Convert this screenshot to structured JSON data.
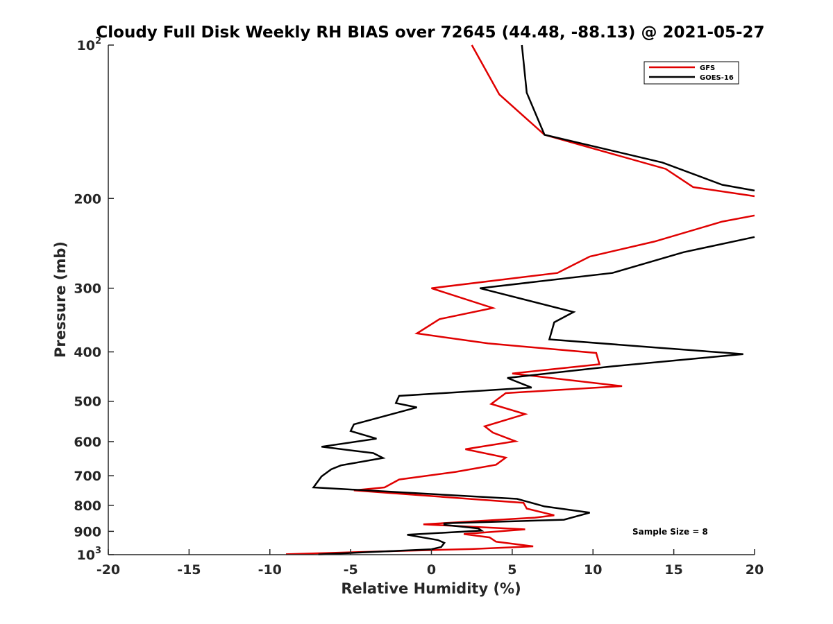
{
  "chart_data": {
    "type": "line",
    "title": "Cloudy Full Disk Weekly RH BIAS over 72645 (44.48, -88.13) @ 2021-05-27",
    "xlabel": "Relative Humidity (%)",
    "ylabel": "Pressure (mb)",
    "xlim": [
      -20,
      20
    ],
    "ylim": [
      100,
      1000
    ],
    "y_scale": "log",
    "y_reversed": true,
    "grid": false,
    "legend_position": "top-right",
    "x_ticks": [
      "-20",
      "-15",
      "-10",
      "-5",
      "0",
      "5",
      "10",
      "15",
      "20"
    ],
    "y_ticks": [
      {
        "value": 100,
        "base": "10",
        "exp": "2"
      },
      {
        "value": 200,
        "label": "200"
      },
      {
        "value": 300,
        "label": "300"
      },
      {
        "value": 400,
        "label": "400"
      },
      {
        "value": 500,
        "label": "500"
      },
      {
        "value": 600,
        "label": "600"
      },
      {
        "value": 700,
        "label": "700"
      },
      {
        "value": 800,
        "label": "800"
      },
      {
        "value": 900,
        "label": "900"
      },
      {
        "value": 1000,
        "base": "10",
        "exp": "3"
      }
    ],
    "annotation": "Sample Size = 8",
    "series": [
      {
        "name": "GFS",
        "color": "#e00000",
        "points": [
          [
            2.5,
            100
          ],
          [
            4.2,
            125
          ],
          [
            7.0,
            150
          ],
          [
            14.5,
            175
          ],
          [
            16.2,
            190
          ],
          [
            20.0,
            198
          ],
          [
            null,
            null
          ],
          [
            20.0,
            216
          ],
          [
            18.0,
            222
          ],
          [
            13.8,
            243
          ],
          [
            9.8,
            260
          ],
          [
            7.8,
            280
          ],
          [
            0.0,
            300
          ],
          [
            3.8,
            328
          ],
          [
            0.5,
            345
          ],
          [
            -0.9,
            368
          ],
          [
            3.5,
            385
          ],
          [
            10.2,
            402
          ],
          [
            10.4,
            423
          ],
          [
            5.0,
            441
          ],
          [
            11.8,
            467
          ],
          [
            4.6,
            482
          ],
          [
            3.7,
            506
          ],
          [
            5.8,
            530
          ],
          [
            3.3,
            560
          ],
          [
            3.8,
            576
          ],
          [
            5.2,
            599
          ],
          [
            2.1,
            621
          ],
          [
            4.6,
            645
          ],
          [
            4.0,
            666
          ],
          [
            1.5,
            688
          ],
          [
            -2.0,
            712
          ],
          [
            -2.9,
            738
          ],
          [
            -4.8,
            748
          ],
          [
            5.7,
            791
          ],
          [
            5.9,
            812
          ],
          [
            7.6,
            837
          ],
          [
            6.4,
            846
          ],
          [
            -0.5,
            872
          ],
          [
            5.8,
            892
          ],
          [
            2.0,
            911
          ],
          [
            3.6,
            925
          ],
          [
            4.0,
            943
          ],
          [
            6.3,
            963
          ],
          [
            2.5,
            975
          ],
          [
            -3.0,
            985
          ],
          [
            -9.0,
            998
          ]
        ]
      },
      {
        "name": "GOES-16",
        "color": "#000000",
        "points": [
          [
            5.6,
            100
          ],
          [
            5.9,
            124
          ],
          [
            7.0,
            150
          ],
          [
            14.3,
            170
          ],
          [
            18.0,
            188
          ],
          [
            20.0,
            193
          ],
          [
            null,
            null
          ],
          [
            20.0,
            238
          ],
          [
            15.6,
            255
          ],
          [
            11.2,
            280
          ],
          [
            3.0,
            300
          ],
          [
            8.8,
            334
          ],
          [
            7.6,
            350
          ],
          [
            7.3,
            378
          ],
          [
            13.8,
            392
          ],
          [
            19.3,
            404
          ],
          [
            11.2,
            427
          ],
          [
            4.7,
            450
          ],
          [
            6.2,
            470
          ],
          [
            -2.0,
            488
          ],
          [
            -2.2,
            504
          ],
          [
            -0.9,
            514
          ],
          [
            -4.8,
            555
          ],
          [
            -5.0,
            572
          ],
          [
            -3.4,
            592
          ],
          [
            -6.8,
            614
          ],
          [
            -3.6,
            632
          ],
          [
            -3.0,
            646
          ],
          [
            -5.6,
            668
          ],
          [
            -6.2,
            680
          ],
          [
            -6.8,
            702
          ],
          [
            -7.0,
            716
          ],
          [
            -7.3,
            738
          ],
          [
            5.3,
            777
          ],
          [
            7.0,
            804
          ],
          [
            9.8,
            827
          ],
          [
            8.2,
            854
          ],
          [
            0.8,
            868
          ],
          [
            0.8,
            874
          ],
          [
            2.9,
            888
          ],
          [
            3.1,
            897
          ],
          [
            -1.5,
            914
          ],
          [
            0.4,
            936
          ],
          [
            0.8,
            948
          ],
          [
            0.6,
            966
          ],
          [
            0.0,
            976
          ],
          [
            -7.0,
            999
          ]
        ]
      }
    ]
  }
}
